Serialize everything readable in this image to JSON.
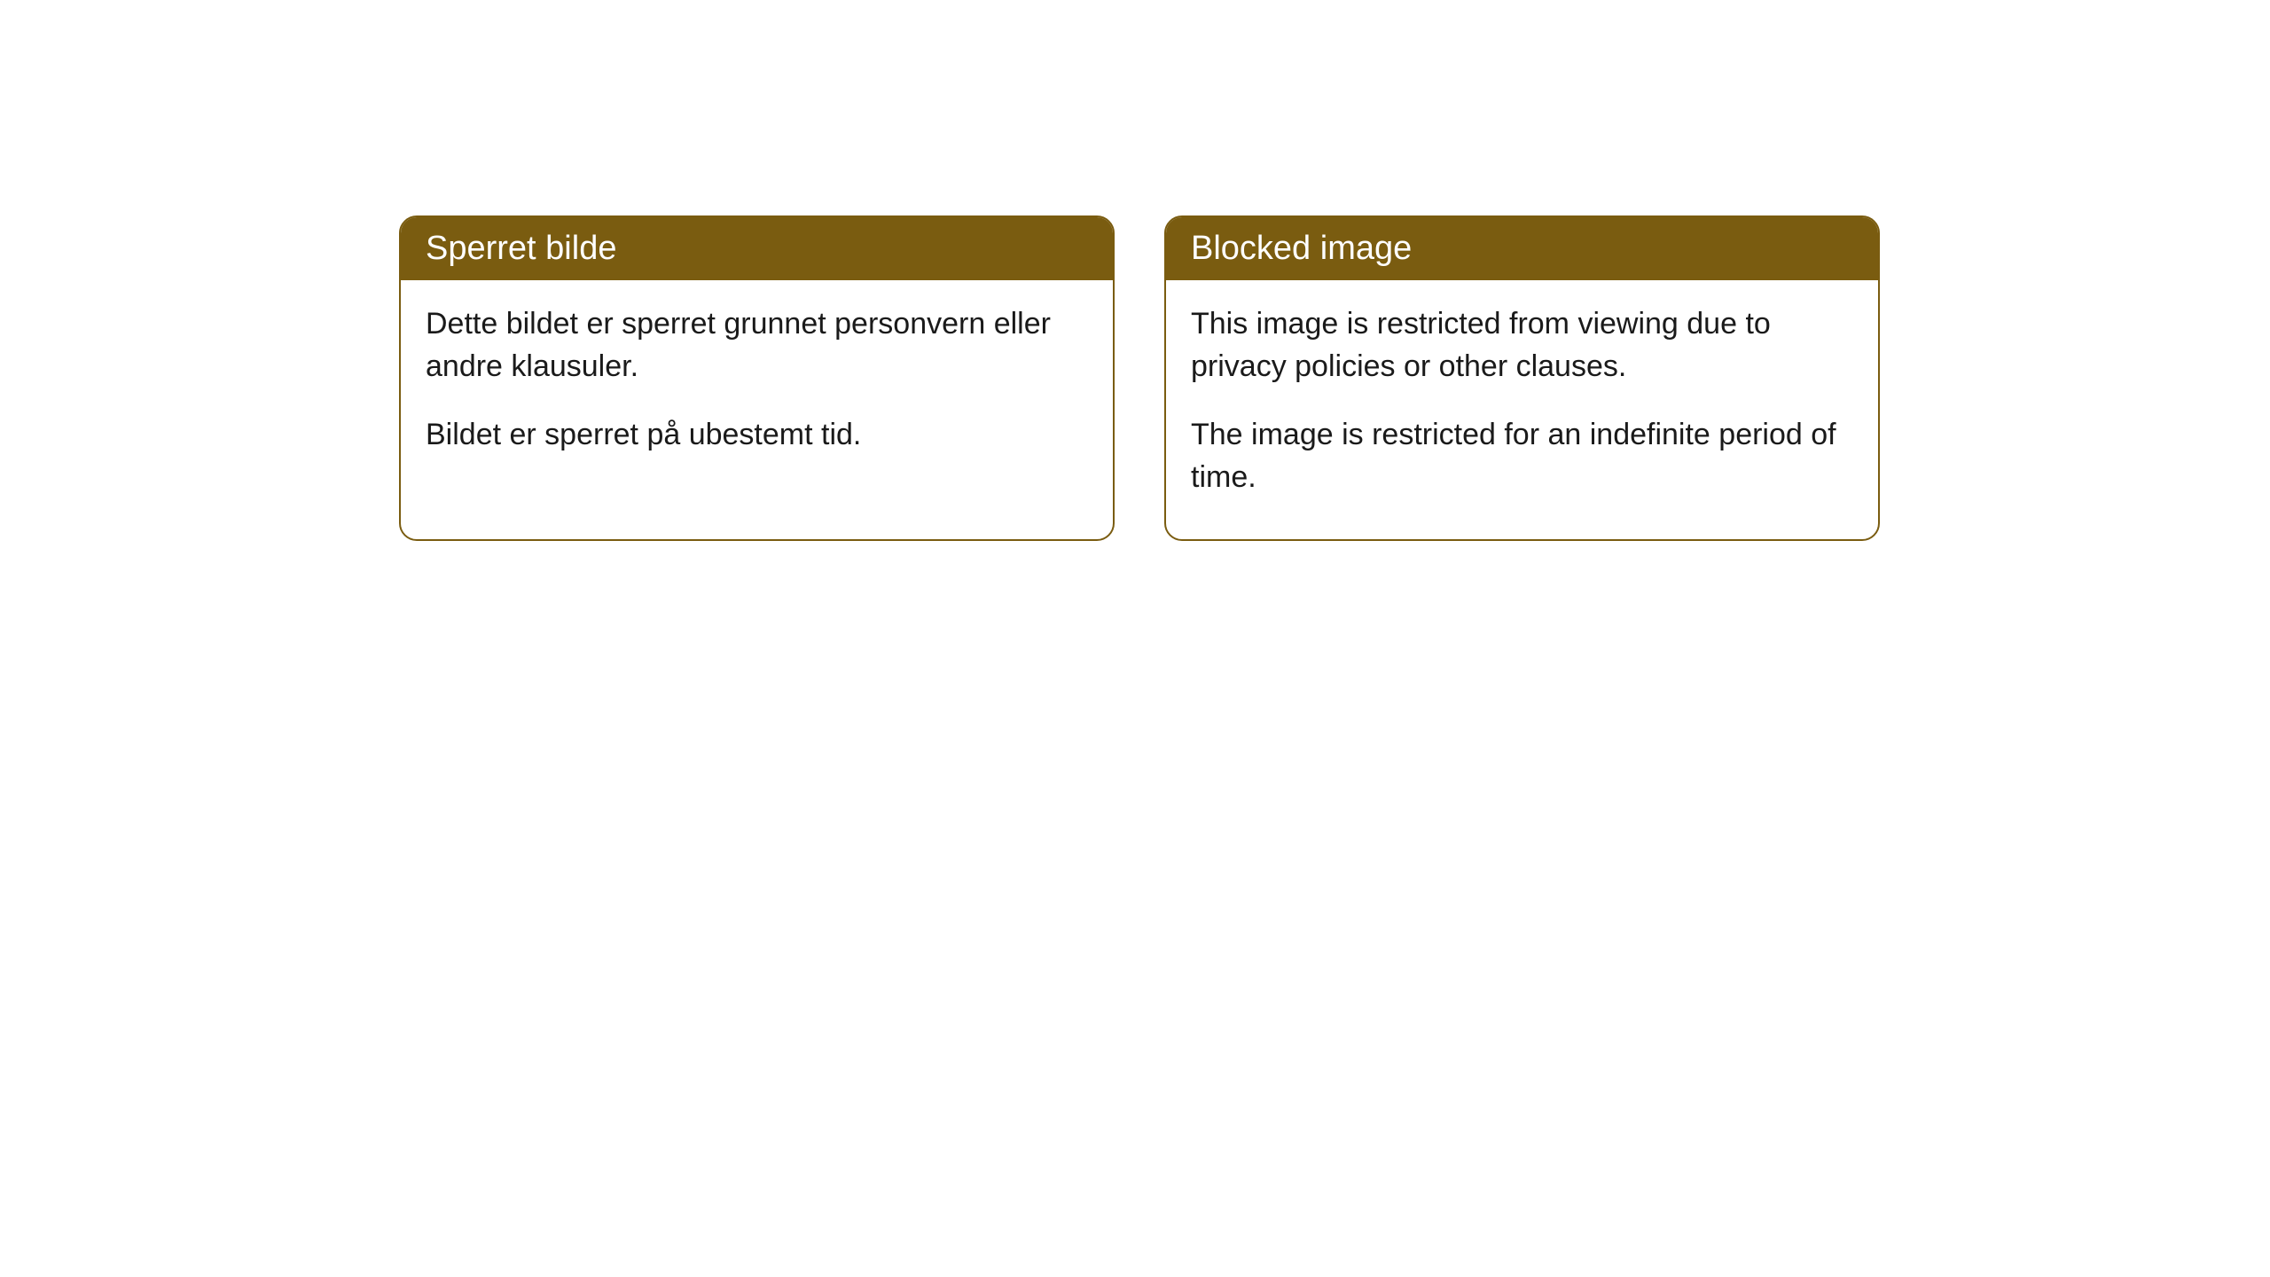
{
  "cards": [
    {
      "title": "Sperret bilde",
      "paragraph1": "Dette bildet er sperret grunnet personvern eller andre klausuler.",
      "paragraph2": "Bildet er sperret på ubestemt tid."
    },
    {
      "title": "Blocked image",
      "paragraph1": "This image is restricted from viewing due to privacy policies or other clauses.",
      "paragraph2": "The image is restricted for an indefinite period of time."
    }
  ],
  "styling": {
    "header_bg_color": "#7a5c10",
    "header_text_color": "#ffffff",
    "body_text_color": "#1a1a1a",
    "border_color": "#7a5c10",
    "border_radius": "20px",
    "card_bg_color": "#ffffff",
    "page_bg_color": "#ffffff",
    "title_fontsize": 38,
    "body_fontsize": 34
  }
}
